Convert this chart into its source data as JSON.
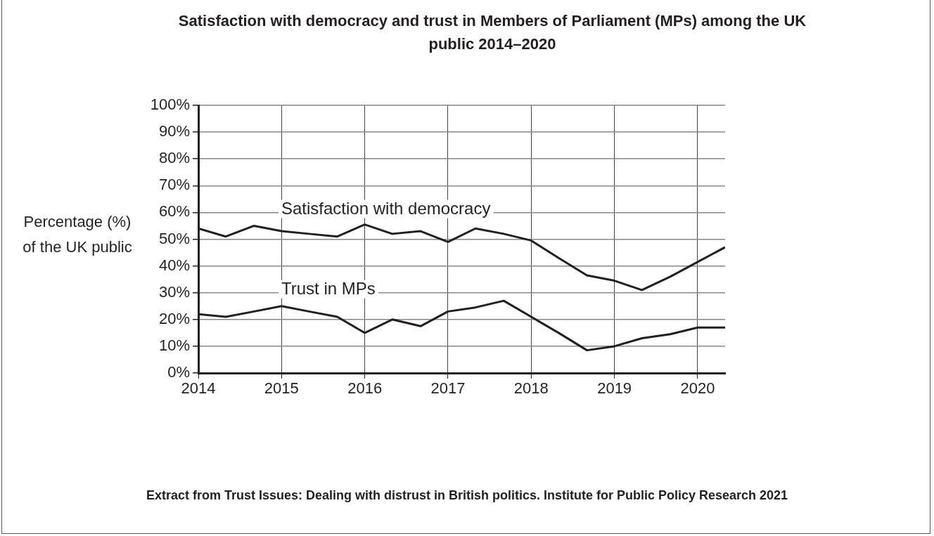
{
  "chart_data": {
    "type": "line",
    "title": "Satisfaction with democracy and trust in Members of Parliament (MPs) among the UK public 2014–2020",
    "ylabel": "Percentage (%) of the UK public",
    "annotations": [
      "Extract from Trust Issues: Dealing with distrust in British politics. Institute for Public Policy Research 2021"
    ],
    "x": [
      2014,
      2014.33,
      2014.67,
      2015,
      2015.33,
      2015.67,
      2016,
      2016.33,
      2016.67,
      2017,
      2017.33,
      2017.67,
      2018,
      2018.33,
      2018.67,
      2019,
      2019.33,
      2019.67,
      2020,
      2020.33
    ],
    "series": [
      {
        "name": "Satisfaction with democracy",
        "color": "#231f20",
        "values": [
          54,
          51,
          55,
          53,
          52,
          51,
          55.5,
          52,
          53,
          49,
          54,
          52,
          49.5,
          43,
          36.5,
          34.5,
          31,
          36,
          41.5,
          47
        ]
      },
      {
        "name": "Trust in MPs",
        "color": "#231f20",
        "values": [
          22,
          21,
          23,
          25,
          23,
          21,
          15,
          20,
          17.5,
          23,
          24.5,
          27,
          21,
          15,
          8.5,
          10,
          13,
          14.5,
          17,
          17
        ]
      }
    ],
    "xlim": [
      2014,
      2020.33
    ],
    "xticks": [
      2014,
      2015,
      2016,
      2017,
      2018,
      2019,
      2020
    ],
    "ylim": [
      0,
      100
    ],
    "yticks": [
      {
        "value": 0,
        "label": "0%"
      },
      {
        "value": 10,
        "label": "10%"
      },
      {
        "value": 20,
        "label": "20%"
      },
      {
        "value": 30,
        "label": "30%"
      },
      {
        "value": 40,
        "label": "40%"
      },
      {
        "value": 50,
        "label": "50%"
      },
      {
        "value": 60,
        "label": "60%"
      },
      {
        "value": 70,
        "label": "70%"
      },
      {
        "value": 80,
        "label": "80%"
      },
      {
        "value": 90,
        "label": "90%"
      },
      {
        "value": 100,
        "label": "100%"
      }
    ],
    "grid": true,
    "legend": false,
    "marker": "none",
    "line_style": "solid"
  }
}
